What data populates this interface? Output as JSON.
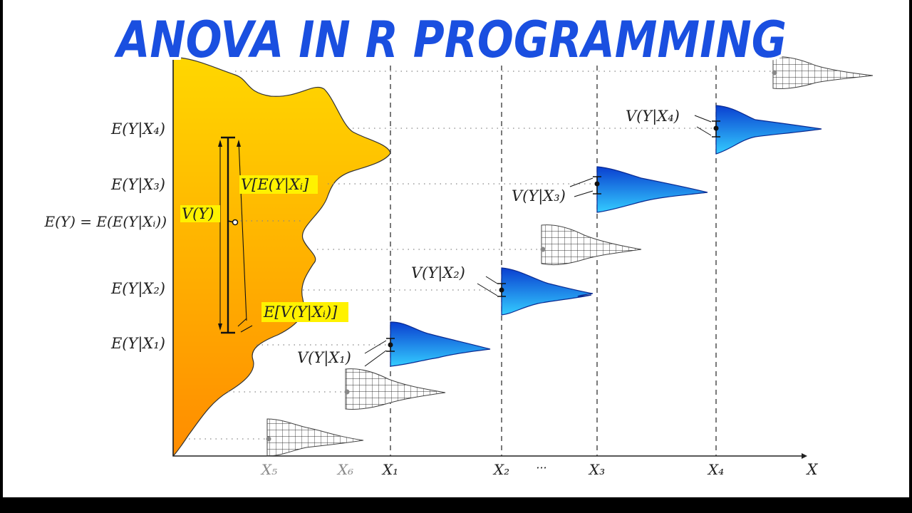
{
  "title": "ANOVA IN R PROGRAMMING",
  "colors": {
    "title_fill": "#1a4fe0",
    "orange_top": "#ffd700",
    "orange_bottom": "#ff8c00",
    "blue_top": "#0a3fd0",
    "blue_bottom": "#33ccff",
    "highlight": "#fff200"
  },
  "y_axis_labels": {
    "e_y_x4": "E(Y|X₄)",
    "e_y_x3": "E(Y|X₃)",
    "e_y": "E(Y) = E(E(Y|Xᵢ))",
    "e_y_x2": "E(Y|X₂)",
    "e_y_x1": "E(Y|X₁)"
  },
  "x_axis_labels": {
    "x5": "X₅",
    "x6": "X₆",
    "x1": "X₁",
    "x2": "X₂",
    "dots": "···",
    "x3": "X₃",
    "x4": "X₄",
    "axis": "X"
  },
  "annotations": {
    "v_y": "V(Y)",
    "v_e": "V[E(Y|Xᵢ]",
    "e_v": "E[V(Y|Xᵢ)]",
    "v_x1": "V(Y|X₁)",
    "v_x2": "V(Y|X₂)",
    "v_x3": "V(Y|X₃)",
    "v_x4": "V(Y|X₄)"
  }
}
